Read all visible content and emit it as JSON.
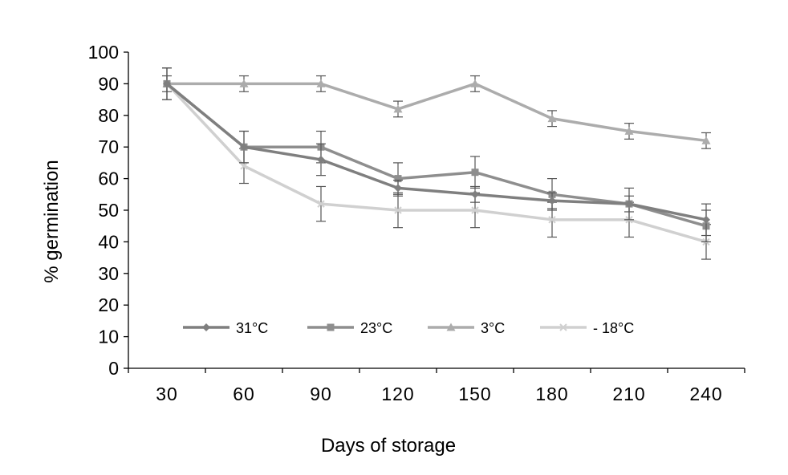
{
  "chart_data": {
    "type": "line",
    "title": "",
    "xlabel": "Days of storage",
    "ylabel": "% germination",
    "x": [
      30,
      60,
      90,
      120,
      150,
      180,
      210,
      240
    ],
    "x_tick_labels": [
      "30",
      "60",
      "90",
      "120",
      "150",
      "180",
      "210",
      "240"
    ],
    "ylim": [
      0,
      100
    ],
    "y_ticks": [
      0,
      10,
      20,
      30,
      40,
      50,
      60,
      70,
      80,
      90,
      100
    ],
    "grid": false,
    "legend_position": "bottom-inside",
    "series": [
      {
        "name": "31°C",
        "marker": "diamond",
        "color": "#7f7f7f",
        "values": [
          90,
          70,
          66,
          57,
          55,
          53,
          52,
          47
        ],
        "error": [
          5,
          5,
          5,
          2.5,
          2.5,
          2.5,
          2.5,
          5
        ]
      },
      {
        "name": "23°C",
        "marker": "square",
        "color": "#8e8e8e",
        "values": [
          90,
          70,
          70,
          60,
          62,
          55,
          52,
          45
        ],
        "error": [
          5,
          5,
          5,
          5,
          5,
          5,
          5,
          5
        ]
      },
      {
        "name": "3°C",
        "marker": "triangle",
        "color": "#acacac",
        "values": [
          90,
          90,
          90,
          82,
          90,
          79,
          75,
          72
        ],
        "error": [
          2.5,
          2.5,
          2.5,
          2.5,
          2.5,
          2.5,
          2.5,
          2.5
        ]
      },
      {
        "name": "- 18°C",
        "marker": "x",
        "color": "#d0d0d0",
        "values": [
          90,
          64,
          52,
          50,
          50,
          47,
          47,
          40
        ],
        "error": [
          5,
          5.5,
          5.5,
          5.5,
          5.5,
          5.5,
          5.5,
          5.5
        ]
      }
    ]
  }
}
